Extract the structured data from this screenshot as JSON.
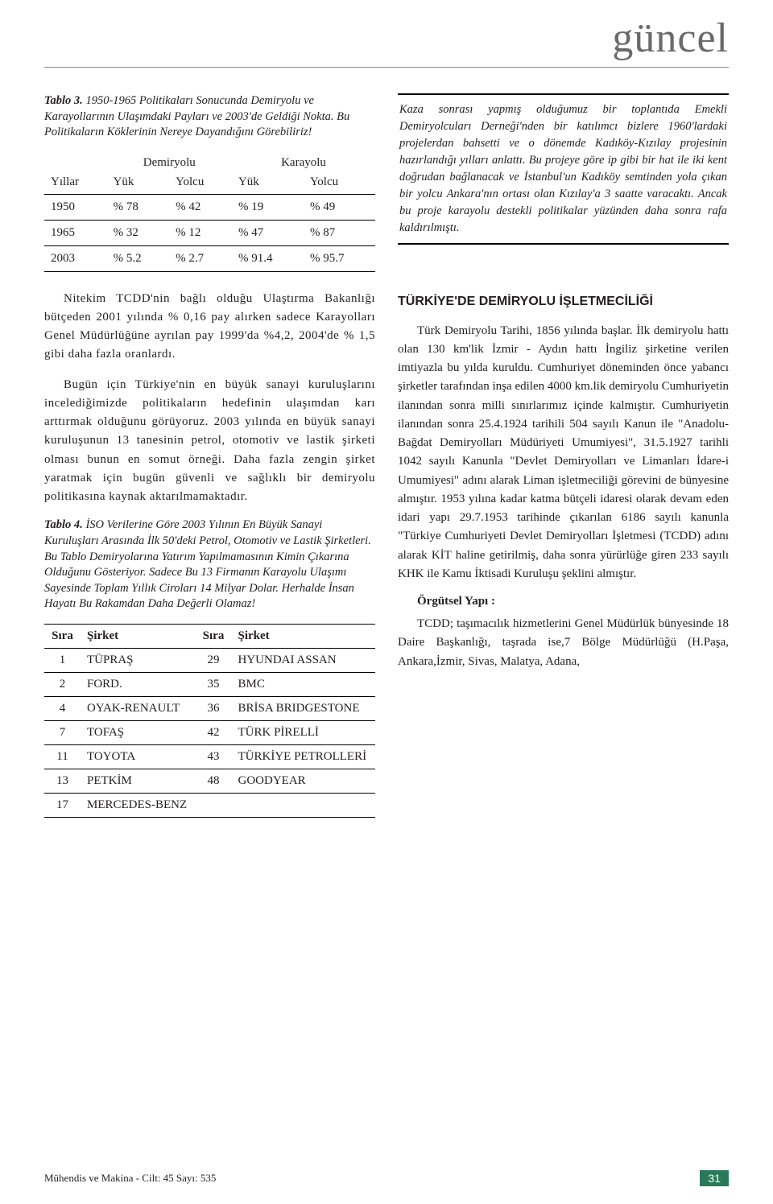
{
  "header": {
    "title": "güncel"
  },
  "table3": {
    "caption_bold": "Tablo 3.",
    "caption": " 1950-1965 Politikaları Sonucunda Demiryolu ve Karayollarının Ulaşımdaki Payları ve 2003'de Geldiği Nokta. Bu Politikaların Köklerinin Nereye Dayandığını Görebiliriz!",
    "group_headers": [
      "",
      "Demiryolu",
      "Karayolu"
    ],
    "sub_headers": [
      "Yıllar",
      "Yük",
      "Yolcu",
      "Yük",
      "Yolcu"
    ],
    "rows": [
      [
        "1950",
        "% 78",
        "% 42",
        "% 19",
        "% 49"
      ],
      [
        "1965",
        "% 32",
        "% 12",
        "% 47",
        "% 87"
      ],
      [
        "2003",
        "% 5.2",
        "% 2.7",
        "% 91.4",
        "% 95.7"
      ]
    ]
  },
  "box": {
    "text": "Kaza sonrası yapmış olduğumuz bir toplantıda Emekli Demiryolcuları Derneği'nden bir katılımcı bizlere 1960'lardaki projelerdan bahsetti ve o dönemde Kadıköy-Kızılay projesinin hazırlandığı yılları anlattı. Bu projeye göre ip gibi bir hat ile iki kent doğrudan bağlanacak ve İstanbul'un Kadıköy semtinden yola çıkan bir yolcu Ankara'nın ortası olan Kızılay'a 3 saatte varacaktı. Ancak bu proje karayolu destekli politikalar yüzünden daha sonra rafa kaldırılmıştı."
  },
  "left_body": {
    "p1": "Nitekim TCDD'nin bağlı olduğu Ulaştırma Bakanlığı bütçeden 2001 yılında % 0,16 pay alırken sadece Karayolları Genel Müdürlüğüne ayrılan pay 1999'da %4,2, 2004'de % 1,5 gibi daha fazla oranlardı.",
    "p2": "Bugün için Türkiye'nin en büyük sanayi kuruluşlarını incelediğimizde politikaların hedefinin ulaşımdan karı arttırmak olduğunu görüyoruz. 2003 yılında en büyük sanayi kuruluşunun 13 tanesinin petrol, otomotiv ve lastik şirketi olması bunun en somut örneği. Daha fazla zengin şirket yaratmak için bugün güvenli ve sağlıklı bir demiryolu politikasına kaynak aktarılmamaktadır."
  },
  "table4": {
    "caption_bold": "Tablo 4.",
    "caption": " İSO Verilerine Göre 2003 Yılının En Büyük Sanayi Kuruluşları Arasında İlk 50'deki Petrol, Otomotiv ve Lastik Şirketleri. Bu Tablo Demiryolarına Yatırım Yapılmamasının Kimin Çıkarına Olduğunu Gösteriyor. Sadece Bu 13 Firmanın Karayolu Ulaşımı Sayesinde Toplam Yıllık Ciroları 14 Milyar Dolar. Herhalde İnsan Hayatı Bu Rakamdan Daha Değerli Olamaz!",
    "headers": [
      "Sıra",
      "Şirket",
      "Sıra",
      "Şirket"
    ],
    "rows": [
      [
        "1",
        "TÜPRAŞ",
        "29",
        "HYUNDAI ASSAN"
      ],
      [
        "2",
        "FORD.",
        "35",
        "BMC"
      ],
      [
        "4",
        "OYAK-RENAULT",
        "36",
        "BRİSA BRIDGESTONE"
      ],
      [
        "7",
        "TOFAŞ",
        "42",
        "TÜRK PİRELLİ"
      ],
      [
        "11",
        "TOYOTA",
        "43",
        "TÜRKİYE PETROLLERİ"
      ],
      [
        "13",
        "PETKİM",
        "48",
        "GOODYEAR"
      ],
      [
        "17",
        "MERCEDES-BENZ",
        "",
        ""
      ]
    ]
  },
  "right_body": {
    "section_title": "TÜRKİYE'DE DEMİRYOLU İŞLETMECİLİĞİ",
    "p1": "Türk Demiryolu Tarihi, 1856 yılında başlar. İlk demiryolu hattı olan 130 km'lik İzmir - Aydın hattı İngiliz şirketine verilen imtiyazla bu yılda kuruldu. Cumhuriyet döneminden önce yabancı şirketler tarafından inşa edilen 4000 km.lik demiryolu Cumhuriyetin ilanından sonra milli sınırlarımız içinde kalmıştır. Cumhuriyetin ilanından sonra 25.4.1924 tarihili 504 sayılı Kanun ile \"Anadolu-Bağdat Demiryolları Müdüriyeti Umumiyesi\", 31.5.1927 tarihli 1042 sayılı Kanunla \"Devlet Demiryolları ve Limanları İdare-i Umumiyesi\" adını alarak Liman işletmeciliği görevini de bünyesine almıştır. 1953 yılına kadar katma bütçeli idaresi olarak devam eden idari yapı 29.7.1953 tarihinde çıkarılan 6186 sayılı kanunla \"Türkiye Cumhuriyeti Devlet Demiryolları İşletmesi (TCDD) adını alarak KİT haline getirilmiş, daha sonra yürürlüğe giren 233 sayılı KHK ile Kamu İktisadi Kuruluşu şeklini almıştır.",
    "sub_title": "Örgütsel Yapı :",
    "p2": "TCDD; taşımacılık hizmetlerini Genel Müdürlük bünyesinde 18 Daire Başkanlığı, taşrada ise,7 Bölge Müdürlüğü (H.Paşa, Ankara,İzmir, Sivas, Malatya, Adana,"
  },
  "footer": {
    "left": "Mühendis ve Makina - Cilt: 45 Sayı: 535",
    "page": "31"
  }
}
